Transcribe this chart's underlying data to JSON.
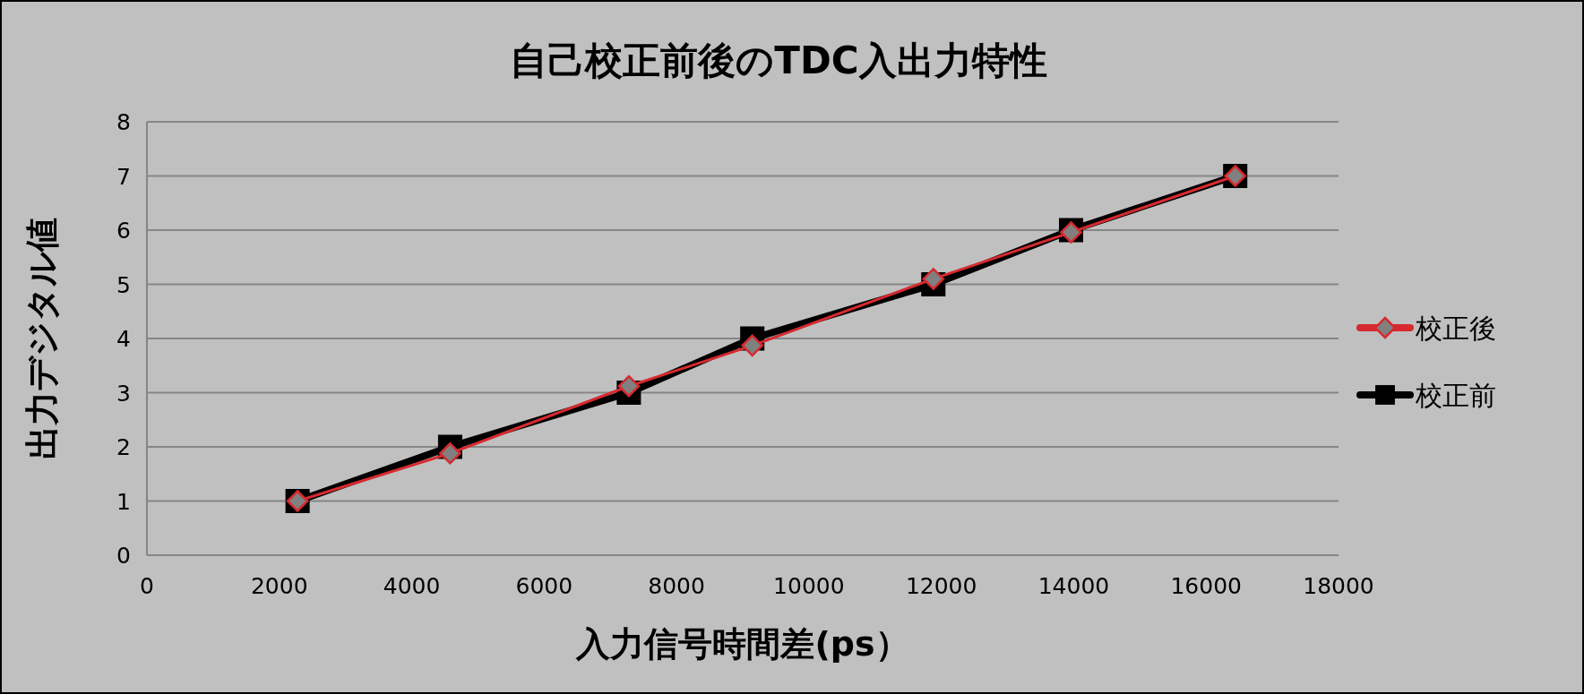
{
  "chart_data": {
    "type": "line",
    "title": "自己校正前後のTDC入出力特性",
    "xlabel": "入力信号時間差(ps）",
    "ylabel": "出力デジタル値",
    "x": [
      2275,
      4580,
      7280,
      9145,
      11880,
      13960,
      16440
    ],
    "series": [
      {
        "name": "校正後",
        "color": "#d62a2f",
        "marker": "diamond",
        "values": [
          1,
          1.88,
          3.12,
          3.87,
          5.1,
          5.96,
          7
        ]
      },
      {
        "name": "校正前",
        "color": "#000000",
        "marker": "square",
        "values": [
          1,
          2,
          3,
          4,
          5,
          6,
          7
        ]
      }
    ],
    "xlim": [
      0,
      18000
    ],
    "xticks": [
      0,
      2000,
      4000,
      6000,
      8000,
      10000,
      12000,
      14000,
      16000,
      18000
    ],
    "ylim": [
      0,
      8
    ],
    "yticks": [
      0,
      1,
      2,
      3,
      4,
      5,
      6,
      7,
      8
    ],
    "grid": "y",
    "legend": "right"
  }
}
